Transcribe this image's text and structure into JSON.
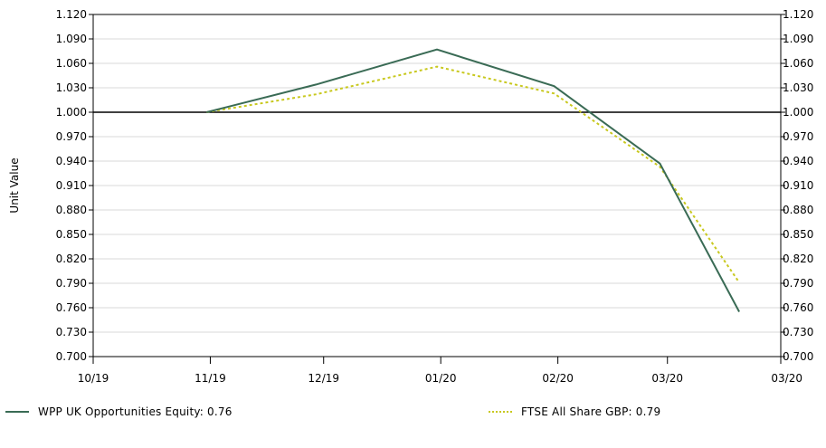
{
  "chart_data": {
    "type": "line",
    "ylabel": "Unit Value",
    "x_tick_labels": [
      "10/19",
      "11/19",
      "12/19",
      "01/20",
      "02/20",
      "03/20",
      "03/20"
    ],
    "ylim": [
      0.7,
      1.12
    ],
    "y_ticks": [
      "1.120",
      "1.090",
      "1.060",
      "1.030",
      "1.000",
      "0.970",
      "0.940",
      "0.910",
      "0.880",
      "0.850",
      "0.820",
      "0.790",
      "0.760",
      "0.730",
      "0.700"
    ],
    "reference_line": 1.0,
    "grid": true,
    "legend_position": "bottom",
    "series": [
      {
        "name": "WPP UK Opportunities Equity",
        "color": "#3a6b55",
        "style": "solid",
        "x": [
          "2019-10-31",
          "2019-11-29",
          "2019-12-31",
          "2020-01-31",
          "2020-02-28",
          "2020-03-20"
        ],
        "values": [
          1.0,
          1.034,
          1.077,
          1.032,
          0.937,
          0.755
        ]
      },
      {
        "name": "FTSE All Share GBP",
        "color": "#c8c81e",
        "style": "dotted",
        "x": [
          "2019-10-31",
          "2019-11-29",
          "2019-12-31",
          "2020-01-31",
          "2020-02-28",
          "2020-03-20"
        ],
        "values": [
          1.0,
          1.022,
          1.056,
          1.023,
          0.933,
          0.791
        ]
      }
    ]
  },
  "legend": [
    {
      "text": "WPP UK Opportunities Equity: 0.76",
      "color": "#3a6b55"
    },
    {
      "text": "FTSE All Share GBP: 0.79",
      "color": "#c8c81e"
    }
  ]
}
